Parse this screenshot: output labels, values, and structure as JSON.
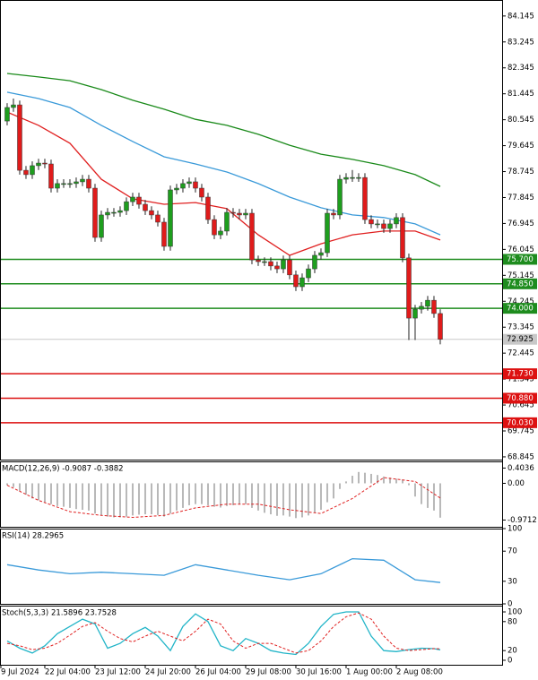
{
  "chart_data": [
    {
      "type": "candlestick",
      "xlim": [
        -1.14,
        78.86
      ],
      "xticks": [
        {
          "value": -1,
          "label": "9 Jul 2024"
        },
        {
          "value": 6,
          "label": "22 Jul 04:00"
        },
        {
          "value": 14,
          "label": "23 Jul 12:00"
        },
        {
          "value": 22,
          "label": "24 Jul 20:00"
        },
        {
          "value": 30,
          "label": "26 Jul 04:00"
        },
        {
          "value": 38,
          "label": "29 Jul 08:00"
        },
        {
          "value": 46,
          "label": "30 Jul 16:00"
        },
        {
          "value": 54,
          "label": "1 Aug 00:00"
        },
        {
          "value": 62,
          "label": "2 Aug 08:00"
        }
      ],
      "ylim": [
        68.75,
        84.7
      ],
      "yticks": [
        84.145,
        83.245,
        82.345,
        81.445,
        80.545,
        79.645,
        78.745,
        77.845,
        76.945,
        76.045,
        75.145,
        74.245,
        73.345,
        72.445,
        71.545,
        70.645,
        69.745,
        68.845
      ],
      "up_color": "#1e9e1e",
      "down_color": "#e01b1b",
      "wick_color": "#222222",
      "open": [
        80.5,
        80.97,
        81.06,
        78.79,
        78.64,
        78.95,
        79.04,
        79.01,
        78.17,
        78.33,
        78.33,
        78.33,
        78.39,
        78.48,
        78.17,
        76.46,
        77.24,
        77.33,
        77.33,
        77.39,
        77.7,
        77.86,
        77.61,
        77.39,
        77.24,
        76.99,
        76.15,
        78.11,
        78.17,
        78.33,
        78.39,
        78.17,
        77.86,
        77.08,
        76.55,
        76.68,
        77.33,
        77.3,
        77.24,
        77.3,
        75.68,
        75.62,
        75.62,
        75.47,
        75.37,
        75.68,
        75.16,
        74.75,
        75.06,
        75.37,
        75.84,
        75.93,
        77.3,
        77.24,
        78.48,
        78.54,
        78.54,
        78.54,
        77.08,
        76.93,
        76.93,
        76.77,
        76.93,
        77.15,
        75.75,
        73.66,
        73.97,
        74.07,
        74.28,
        73.82
      ],
      "high": [
        81.12,
        81.28,
        81.21,
        78.94,
        79.1,
        79.19,
        79.19,
        79.16,
        78.48,
        78.48,
        78.48,
        78.54,
        78.63,
        78.63,
        78.32,
        77.39,
        77.48,
        77.48,
        77.54,
        77.85,
        78.01,
        78.01,
        77.76,
        77.54,
        77.39,
        77.14,
        78.26,
        78.32,
        78.48,
        78.54,
        78.54,
        78.32,
        78.01,
        77.23,
        76.83,
        77.48,
        77.48,
        77.45,
        77.45,
        77.45,
        75.83,
        75.77,
        75.77,
        75.62,
        75.83,
        75.83,
        75.31,
        75.21,
        75.52,
        75.99,
        76.08,
        77.45,
        77.45,
        78.63,
        78.69,
        78.8,
        78.69,
        78.69,
        77.23,
        77.08,
        77.08,
        77.08,
        77.3,
        77.3,
        75.9,
        74.12,
        74.22,
        74.43,
        74.43,
        73.97
      ],
      "low": [
        80.35,
        80.82,
        78.64,
        78.49,
        78.49,
        78.8,
        78.86,
        78.02,
        78.02,
        78.18,
        78.18,
        78.18,
        78.24,
        78.02,
        76.31,
        76.31,
        77.09,
        77.18,
        77.18,
        77.24,
        77.55,
        77.46,
        77.24,
        77.09,
        76.84,
        76.0,
        76.0,
        77.96,
        78.02,
        78.18,
        78.02,
        77.71,
        76.93,
        76.4,
        76.4,
        76.53,
        77.15,
        77.09,
        77.09,
        75.53,
        75.47,
        75.47,
        75.32,
        75.22,
        75.22,
        75.01,
        74.6,
        74.6,
        74.91,
        75.22,
        75.69,
        75.78,
        77.09,
        77.09,
        78.33,
        78.39,
        78.39,
        76.93,
        76.78,
        76.78,
        76.62,
        76.62,
        76.78,
        75.6,
        72.9,
        72.9,
        73.82,
        73.92,
        73.67,
        72.75
      ],
      "close": [
        80.97,
        81.06,
        78.79,
        78.64,
        78.95,
        79.04,
        79.01,
        78.17,
        78.33,
        78.33,
        78.33,
        78.39,
        78.48,
        78.17,
        76.46,
        77.24,
        77.33,
        77.33,
        77.39,
        77.7,
        77.86,
        77.61,
        77.39,
        77.24,
        76.99,
        76.15,
        78.11,
        78.17,
        78.33,
        78.39,
        78.17,
        77.86,
        77.08,
        76.55,
        76.68,
        77.33,
        77.3,
        77.24,
        77.3,
        75.68,
        75.62,
        75.62,
        75.47,
        75.37,
        75.68,
        75.16,
        74.75,
        75.06,
        75.37,
        75.84,
        75.93,
        77.3,
        77.24,
        78.48,
        78.54,
        78.54,
        78.54,
        77.08,
        76.93,
        76.93,
        76.77,
        76.93,
        77.15,
        75.75,
        73.66,
        73.97,
        74.07,
        74.28,
        73.82,
        72.925
      ],
      "overlays": [
        {
          "color": "#1a8a1a",
          "x": [
            0,
            5,
            10,
            15,
            20,
            25,
            30,
            35,
            40,
            45,
            50,
            55,
            60,
            65,
            69
          ],
          "values": [
            82.15,
            82.03,
            81.9,
            81.59,
            81.22,
            80.91,
            80.56,
            80.35,
            80.04,
            79.66,
            79.35,
            79.17,
            78.95,
            78.64,
            78.23
          ]
        },
        {
          "color": "#3a9ad9",
          "x": [
            0,
            5,
            10,
            15,
            20,
            25,
            30,
            35,
            40,
            45,
            50,
            55,
            60,
            65,
            69
          ],
          "values": [
            81.5,
            81.28,
            80.97,
            80.35,
            79.79,
            79.26,
            79.01,
            78.73,
            78.33,
            77.86,
            77.49,
            77.24,
            77.15,
            76.93,
            76.55
          ]
        },
        {
          "color": "#e02020",
          "x": [
            0,
            5,
            10,
            15,
            20,
            25,
            30,
            35,
            40,
            45,
            50,
            55,
            60,
            65,
            69
          ],
          "values": [
            80.81,
            80.35,
            79.73,
            78.48,
            77.8,
            77.61,
            77.67,
            77.46,
            76.55,
            75.84,
            76.24,
            76.55,
            76.68,
            76.68,
            76.37
          ]
        }
      ],
      "levels": [
        {
          "value": 75.7,
          "label": "75.700",
          "color": "#1e8c1e"
        },
        {
          "value": 74.85,
          "label": "74.850",
          "color": "#1e8c1e"
        },
        {
          "value": 74.0,
          "label": "74.000",
          "color": "#1e8c1e"
        },
        {
          "value": 71.73,
          "label": "71.730",
          "color": "#dd1111"
        },
        {
          "value": 70.88,
          "label": "70.880",
          "color": "#dd1111"
        },
        {
          "value": 70.03,
          "label": "70.030",
          "color": "#dd1111"
        }
      ],
      "last_price": {
        "value": 72.925,
        "label": "72.925",
        "color": "#c8c8c8"
      }
    },
    {
      "type": "macd",
      "title": "MACD(12,26,9) -0.9087 -0.3882",
      "ylim": [
        -1.15,
        0.58
      ],
      "yticks": [
        0.4036,
        {
          "value": 0,
          "label": "0.00"
        },
        -0.9712
      ],
      "histogram_color": "#b8b8b8",
      "histogram": [
        -0.05,
        -0.1,
        -0.2,
        -0.3,
        -0.4,
        -0.45,
        -0.5,
        -0.55,
        -0.6,
        -0.62,
        -0.65,
        -0.68,
        -0.7,
        -0.72,
        -0.8,
        -0.85,
        -0.88,
        -0.9,
        -0.9,
        -0.88,
        -0.85,
        -0.83,
        -0.82,
        -0.82,
        -0.84,
        -0.88,
        -0.8,
        -0.72,
        -0.65,
        -0.58,
        -0.55,
        -0.55,
        -0.58,
        -0.62,
        -0.64,
        -0.6,
        -0.58,
        -0.56,
        -0.55,
        -0.65,
        -0.72,
        -0.78,
        -0.82,
        -0.86,
        -0.85,
        -0.88,
        -0.92,
        -0.9,
        -0.85,
        -0.78,
        -0.7,
        -0.5,
        -0.4,
        -0.15,
        0.05,
        0.2,
        0.3,
        0.28,
        0.25,
        0.22,
        0.18,
        0.15,
        0.12,
        0.1,
        -0.05,
        -0.35,
        -0.55,
        -0.65,
        -0.72,
        -0.9087
      ],
      "series": [
        {
          "color": "#e02020",
          "dash": true,
          "x": [
            0,
            5,
            10,
            15,
            20,
            25,
            30,
            35,
            40,
            45,
            50,
            55,
            60,
            65,
            69
          ],
          "values": [
            -0.05,
            -0.45,
            -0.75,
            -0.85,
            -0.9,
            -0.85,
            -0.65,
            -0.55,
            -0.55,
            -0.7,
            -0.8,
            -0.4,
            0.15,
            0.05,
            -0.3882
          ]
        }
      ]
    },
    {
      "type": "line",
      "title": "RSI(14) 28.2965",
      "ylim": [
        0,
        100
      ],
      "yticks": [
        100,
        70,
        30,
        0
      ],
      "series": [
        {
          "color": "#3a9ad9",
          "dash": false,
          "x": [
            0,
            5,
            10,
            15,
            20,
            25,
            30,
            35,
            40,
            45,
            50,
            55,
            60,
            65,
            69
          ],
          "values": [
            52,
            45,
            40,
            42,
            40,
            38,
            52,
            45,
            38,
            32,
            40,
            60,
            58,
            32,
            28.2965
          ]
        }
      ]
    },
    {
      "type": "line",
      "title": "Stoch(5,3,3) 21.5896 23.7528",
      "ylim": [
        -9.3,
        113
      ],
      "yticks": [
        100,
        80,
        20,
        0
      ],
      "series": [
        {
          "color": "#22b5c8",
          "dash": false,
          "x": [
            0,
            2,
            4,
            6,
            8,
            10,
            12,
            14,
            16,
            18,
            20,
            22,
            24,
            26,
            28,
            30,
            32,
            34,
            36,
            38,
            40,
            42,
            44,
            46,
            48,
            50,
            52,
            54,
            56,
            58,
            60,
            62,
            64,
            66,
            68,
            69
          ],
          "values": [
            40,
            25,
            15,
            30,
            55,
            70,
            85,
            75,
            25,
            35,
            55,
            68,
            50,
            20,
            70,
            96,
            80,
            30,
            20,
            45,
            35,
            20,
            15,
            12,
            35,
            70,
            95,
            100,
            100,
            50,
            20,
            18,
            22,
            25,
            24,
            21.5896
          ]
        },
        {
          "color": "#e02020",
          "dash": true,
          "x": [
            0,
            2,
            4,
            6,
            8,
            10,
            12,
            14,
            16,
            18,
            20,
            22,
            24,
            26,
            28,
            30,
            32,
            34,
            36,
            38,
            40,
            42,
            44,
            46,
            48,
            50,
            52,
            54,
            56,
            58,
            60,
            62,
            64,
            66,
            68,
            69
          ],
          "values": [
            35,
            30,
            22,
            25,
            35,
            52,
            70,
            78,
            60,
            45,
            38,
            50,
            60,
            50,
            40,
            60,
            85,
            75,
            40,
            25,
            35,
            35,
            25,
            15,
            20,
            40,
            70,
            90,
            98,
            85,
            50,
            25,
            20,
            22,
            24,
            23.7528
          ]
        }
      ]
    }
  ]
}
